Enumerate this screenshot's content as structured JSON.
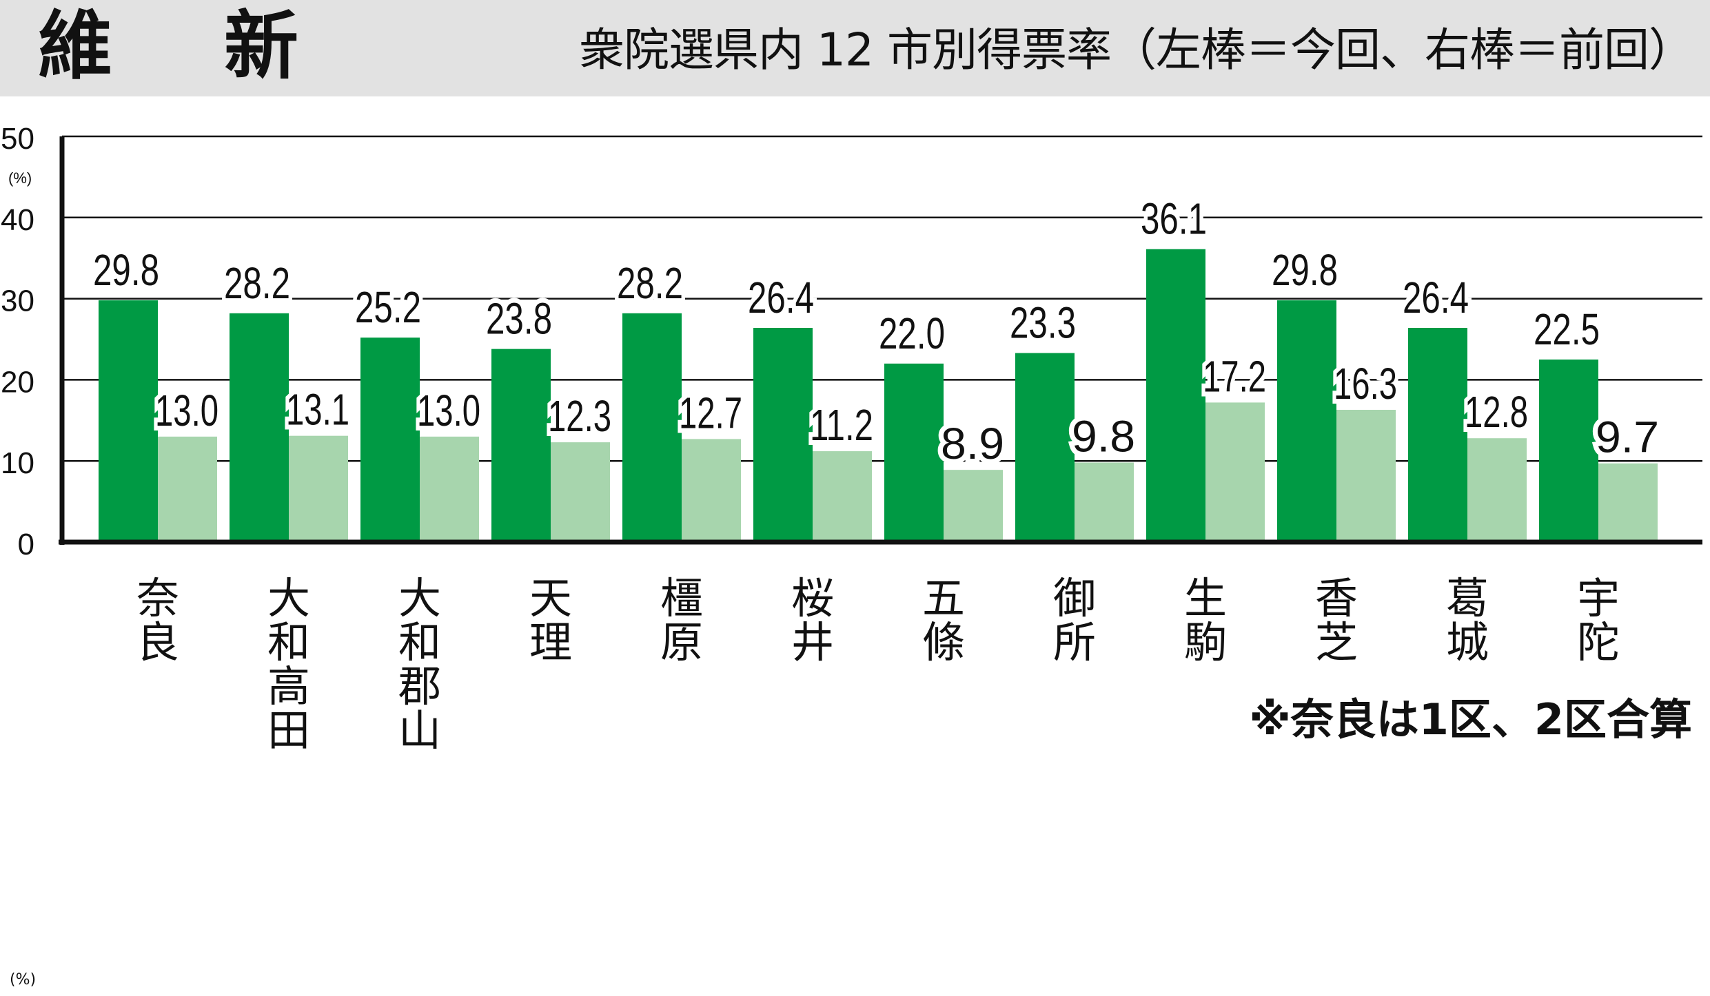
{
  "header": {
    "party": "維　新",
    "subtitle": "衆院選県内 12 市別得票率（左棒＝今回、右棒＝前回）"
  },
  "note": "※奈良は1区、2区合算",
  "unit_bottom": "(%)",
  "colors": {
    "current": "#009a44",
    "previous": "#a7d5ad",
    "header_bg": "#e2e2e2",
    "axis": "#111111"
  },
  "chart_data": {
    "type": "bar",
    "title": "衆院選県内 12 市別得票率（左棒＝今回、右棒＝前回）",
    "categories": [
      "奈良",
      "大和高田",
      "大和郡山",
      "天理",
      "橿原",
      "桜井",
      "五條",
      "御所",
      "生駒",
      "香芝",
      "葛城",
      "宇陀"
    ],
    "series": [
      {
        "name": "今回",
        "values": [
          29.8,
          28.2,
          25.2,
          23.8,
          28.2,
          26.4,
          22.0,
          23.3,
          36.1,
          29.8,
          26.4,
          22.5
        ]
      },
      {
        "name": "前回",
        "values": [
          13.0,
          13.1,
          13.0,
          12.3,
          12.7,
          11.2,
          8.9,
          9.8,
          17.2,
          16.3,
          12.8,
          9.7
        ]
      }
    ],
    "yticks": [
      0,
      10,
      20,
      30,
      40,
      50
    ],
    "yunit": "(%)",
    "ylim": [
      0,
      50
    ],
    "grid": true,
    "xlabel": "",
    "ylabel": ""
  }
}
